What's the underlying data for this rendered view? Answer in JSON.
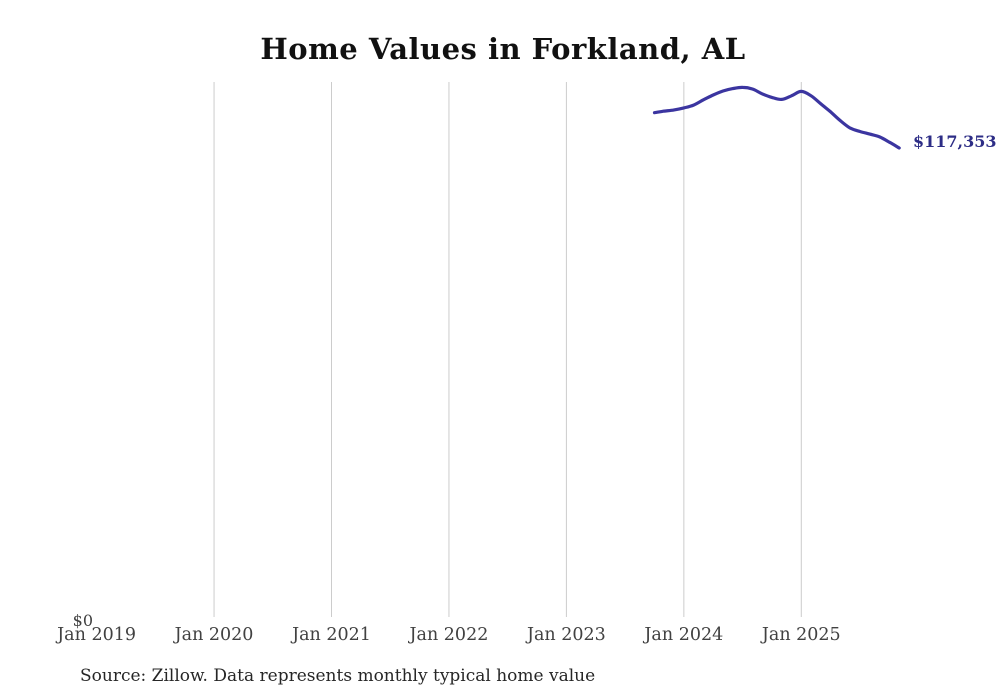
{
  "title": "Home Values in Forkland, AL",
  "source_note": "Source: Zillow. Data represents monthly typical home value",
  "chart_data": {
    "type": "line",
    "title": "Home Values in Forkland, AL",
    "series_name": "Monthly typical home value",
    "x": [
      "Oct 2023",
      "Nov 2023",
      "Dec 2023",
      "Jan 2024",
      "Feb 2024",
      "Mar 2024",
      "Apr 2024",
      "May 2024",
      "Jun 2024",
      "Jul 2024",
      "Aug 2024",
      "Sep 2024",
      "Oct 2024",
      "Nov 2024",
      "Dec 2024",
      "Jan 2025",
      "Feb 2025",
      "Mar 2025",
      "Apr 2025",
      "May 2025",
      "Jun 2025",
      "Jul 2025",
      "Aug 2025",
      "Sep 2025",
      "Oct 2025",
      "Nov 2025"
    ],
    "values": [
      126100,
      126500,
      126800,
      127300,
      128000,
      129300,
      130500,
      131500,
      132100,
      132400,
      132000,
      130800,
      129900,
      129400,
      130300,
      131400,
      130300,
      128300,
      126300,
      124100,
      122300,
      121450,
      120800,
      120100,
      118800,
      117353
    ],
    "end_value": 117353,
    "end_label": "$117,353",
    "y_zero_label": "$0",
    "ylim": [
      0,
      133000
    ],
    "x_ticks": [
      {
        "label": "Jan 2019",
        "year": 2019,
        "gridline": false
      },
      {
        "label": "Jan 2020",
        "year": 2020,
        "gridline": true
      },
      {
        "label": "Jan 2021",
        "year": 2021,
        "gridline": true
      },
      {
        "label": "Jan 2022",
        "year": 2022,
        "gridline": true
      },
      {
        "label": "Jan 2023",
        "year": 2023,
        "gridline": true
      },
      {
        "label": "Jan 2024",
        "year": 2024,
        "gridline": true
      },
      {
        "label": "Jan 2025",
        "year": 2025,
        "gridline": true
      }
    ],
    "grid": "vertical-only",
    "legend": "none",
    "colors": {
      "line": "#3b35a0",
      "end_label": "#2d2d86",
      "gridline": "#cccccc",
      "tick_label": "#414141",
      "title": "#111111",
      "source": "#262626",
      "background": "#ffffff"
    }
  }
}
